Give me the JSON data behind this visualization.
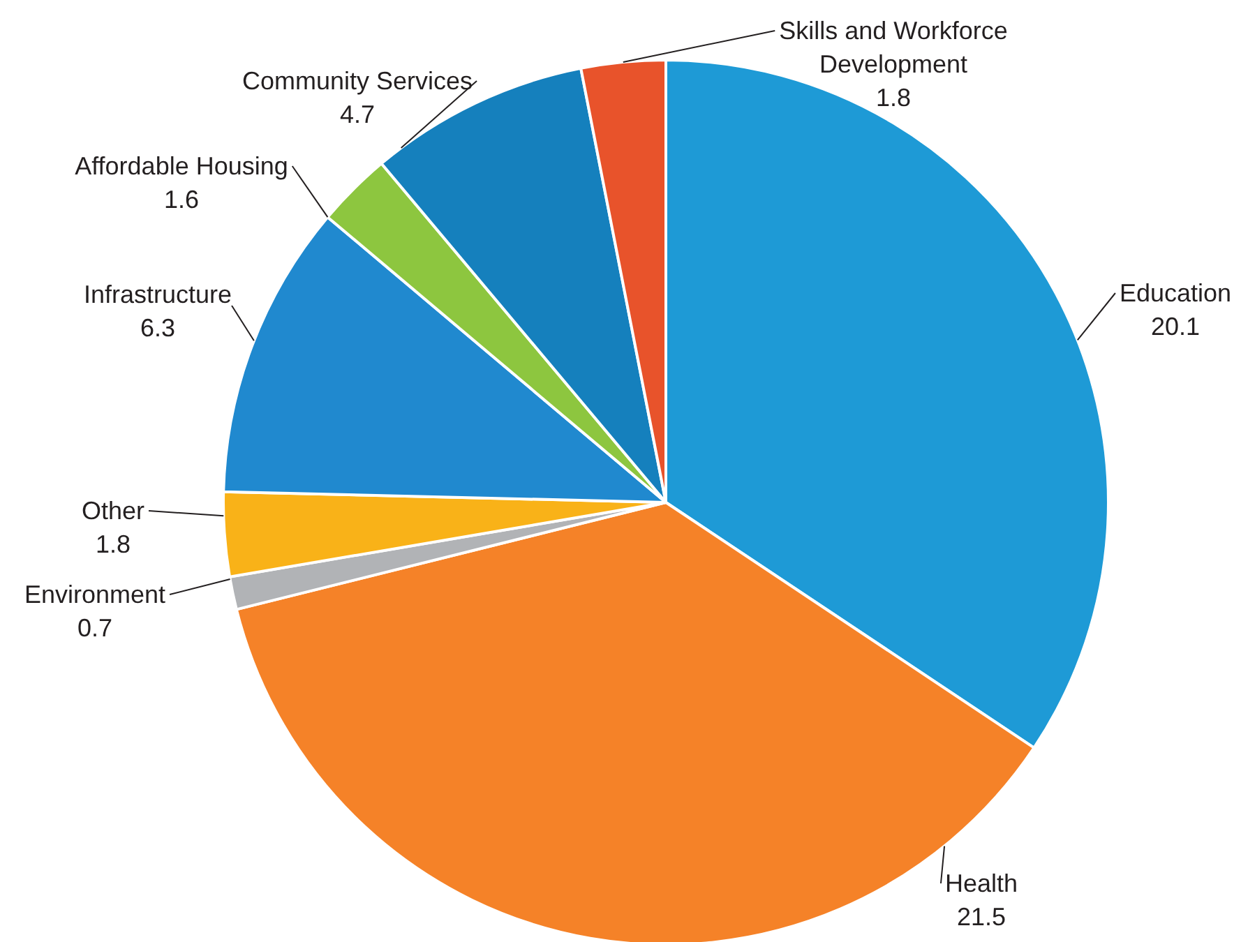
{
  "chart_data": {
    "type": "pie",
    "categories": [
      "Education",
      "Health",
      "Environment",
      "Other",
      "Infrastructure",
      "Affordable Housing",
      "Community Services",
      "Skills and Workforce Development"
    ],
    "values": [
      20.1,
      21.5,
      0.7,
      1.8,
      6.3,
      1.6,
      4.7,
      1.8
    ],
    "colors": [
      "#1e9ad6",
      "#f58228",
      "#b1b3b6",
      "#f9b218",
      "#2089cf",
      "#8dc63f",
      "#1580bd",
      "#e8532b"
    ],
    "data_labels": true
  }
}
